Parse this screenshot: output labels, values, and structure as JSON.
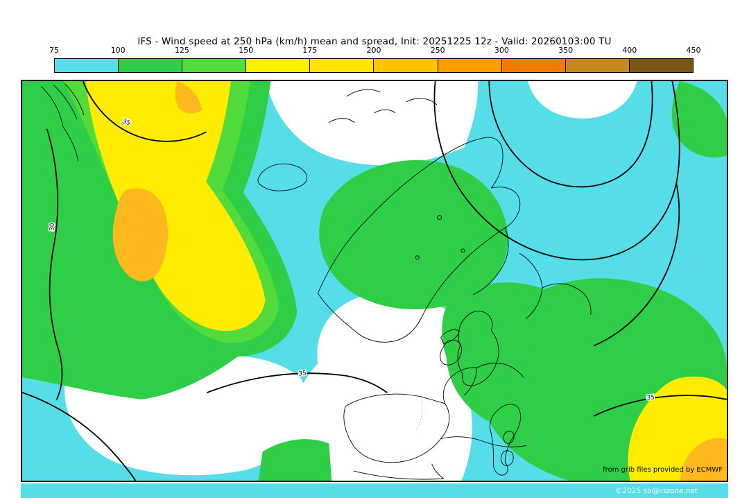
{
  "title": "IFS - Wind speed at 250 hPa (km/h) mean and spread, Init: 20251225 12z - Valid: 20260103:00 TU",
  "colorbar": {
    "ticks": [
      "75",
      "100",
      "125",
      "150",
      "175",
      "200",
      "250",
      "300",
      "350",
      "400",
      "450"
    ],
    "segment_colors": [
      "#55DEE8",
      "#2FCE47",
      "#52DB3A",
      "#F8F200",
      "#FFE400",
      "#FFC400",
      "#FF9E00",
      "#F27C00",
      "#C8861E",
      "#7A5610"
    ],
    "segments": [
      {
        "range": "75-100"
      },
      {
        "range": "100-125"
      },
      {
        "range": "125-150"
      },
      {
        "range": "150-175"
      },
      {
        "range": "175-200"
      },
      {
        "range": "200-250"
      },
      {
        "range": "250-300"
      },
      {
        "range": "300-350"
      },
      {
        "range": "350-400"
      },
      {
        "range": "400-450"
      }
    ]
  },
  "colors": {
    "cyan": "#55DEE8",
    "green": "#2FCE47",
    "light_green": "#52DB3A",
    "yellow": "#FFEC00",
    "gold": "#FFB81E",
    "white": "#FFFFFF"
  },
  "map": {
    "contour_labels": [
      "30",
      "35",
      "35",
      "35"
    ],
    "attribution": "from grib files provided by ECMWF",
    "copyright": "©2025 sb@irizone.net"
  }
}
